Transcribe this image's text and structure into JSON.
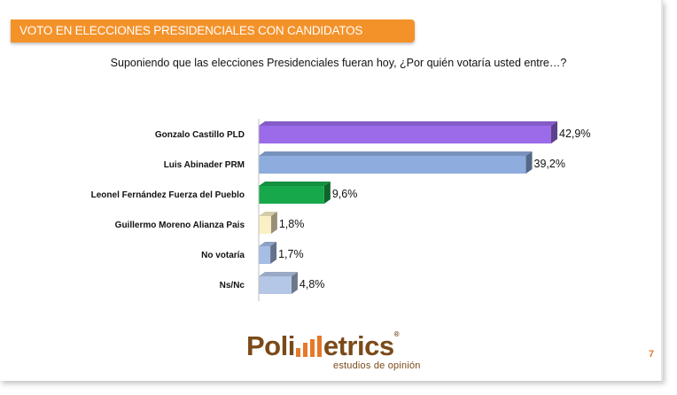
{
  "header": {
    "title": "VOTO EN ELECCIONES PRESIDENCIALES CON CANDIDATOS"
  },
  "question": "Suponiendo que las elecciones Presidenciales fueran hoy, ¿Por quién votaría usted entre…?",
  "chart_data": {
    "type": "bar",
    "orientation": "horizontal",
    "categories": [
      "Gonzalo Castillo PLD",
      "Luis Abinader PRM",
      "Leonel Fernández Fuerza del Pueblo",
      "Guillermo Moreno Alianza Pais",
      "No votaría",
      "Ns/Nc"
    ],
    "values": [
      42.9,
      39.2,
      9.6,
      1.8,
      1.7,
      4.8
    ],
    "value_labels": [
      "42,9%",
      "39,2%",
      "9,6%",
      "1,8%",
      "1,7%",
      "4,8%"
    ],
    "colors": [
      "#9b6bea",
      "#8eacdd",
      "#16a84a",
      "#fbefc6",
      "#a6bde6",
      "#b5c7e6"
    ],
    "xlim": [
      0,
      45
    ],
    "grid": false
  },
  "logo": {
    "part1": "Poli",
    "part2": "etrics",
    "reg": "®",
    "subtitle": "estudios de opinión"
  },
  "page_number": "7"
}
